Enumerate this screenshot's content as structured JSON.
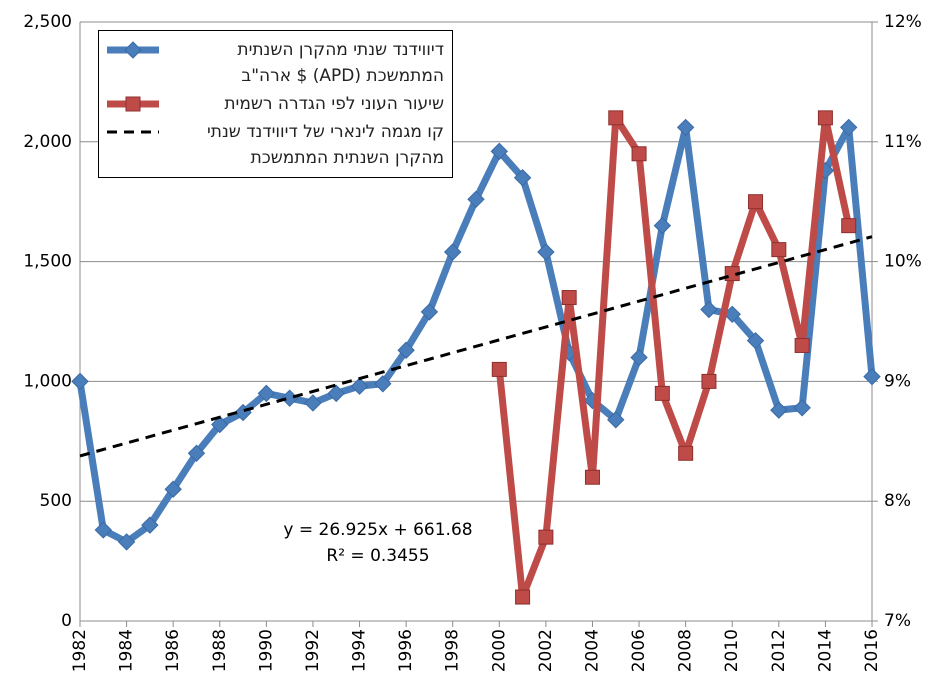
{
  "chart_data": {
    "type": "line",
    "x": [
      1982,
      1983,
      1984,
      1985,
      1986,
      1987,
      1988,
      1989,
      1990,
      1991,
      1992,
      1993,
      1994,
      1995,
      1996,
      1997,
      1998,
      1999,
      2000,
      2001,
      2002,
      2003,
      2004,
      2005,
      2006,
      2007,
      2008,
      2009,
      2010,
      2011,
      2012,
      2013,
      2014,
      2015,
      2016
    ],
    "xlim": [
      1982,
      2016
    ],
    "xticks": [
      1982,
      1984,
      1986,
      1988,
      1990,
      1992,
      1994,
      1996,
      1998,
      2000,
      2002,
      2004,
      2006,
      2008,
      2010,
      2012,
      2014,
      2016
    ],
    "ylim": [
      0,
      2500
    ],
    "yticks": [
      0,
      500,
      {
        "value": 1000,
        "label": "1,000"
      },
      {
        "value": 1500,
        "label": "1,500"
      },
      {
        "value": 2000,
        "label": "2,000"
      },
      {
        "value": 2500,
        "label": "2,500"
      }
    ],
    "y2lim": [
      7,
      12
    ],
    "y2ticks": [
      {
        "value": 7,
        "label": "7%"
      },
      {
        "value": 8,
        "label": "8%"
      },
      {
        "value": 9,
        "label": "9%"
      },
      {
        "value": 10,
        "label": "10%"
      },
      {
        "value": 11,
        "label": "11%"
      },
      {
        "value": 12,
        "label": "12%"
      }
    ],
    "grid": true,
    "series": [
      {
        "name": "דיווידנד שנתי מהקרן השנתית המתמשכת (APD) $ ארה\"ב",
        "color": "#4a7ebb",
        "marker": "diamond",
        "values": [
          1000,
          380,
          330,
          400,
          550,
          700,
          820,
          870,
          950,
          930,
          910,
          950,
          980,
          990,
          1130,
          1290,
          1540,
          1760,
          1960,
          1850,
          1540,
          1120,
          920,
          840,
          1100,
          1650,
          2060,
          1300,
          1280,
          1170,
          880,
          890,
          1880,
          2060,
          1020
        ]
      },
      {
        "name": "שיעור העוני לפי הגדרה רשמית",
        "color": "#be4b48",
        "marker": "square",
        "axis": "y2",
        "values": [
          null,
          null,
          null,
          null,
          null,
          null,
          null,
          null,
          null,
          null,
          null,
          null,
          null,
          null,
          null,
          null,
          null,
          null,
          9.1,
          7.2,
          7.7,
          9.7,
          8.2,
          11.2,
          10.9,
          8.9,
          8.4,
          9.0,
          9.9,
          10.5,
          10.1,
          9.3,
          11.2,
          10.3,
          null
        ]
      },
      {
        "name": "קו מגמה לינארי של דיווידנד שנתי מהקרן השנתית המתמשכת",
        "color": "#000000",
        "style": "dashed",
        "x": [
          1982,
          2016
        ],
        "values": [
          689,
          1604
        ]
      }
    ],
    "annotations": [
      "y = 26.925x + 661.68",
      "R² = 0.3455"
    ]
  }
}
